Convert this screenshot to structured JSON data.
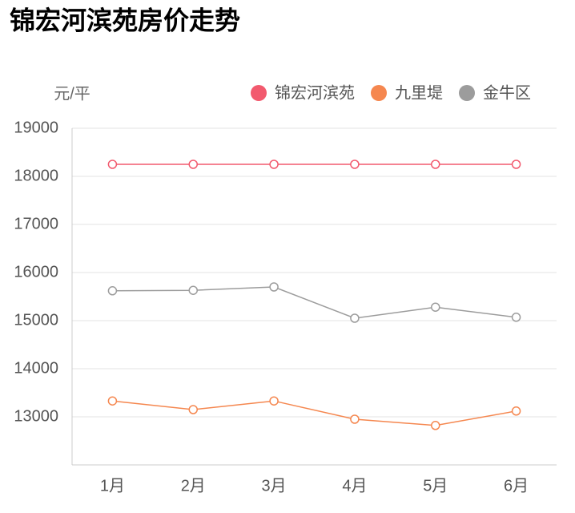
{
  "chart_data": {
    "type": "line",
    "title": "锦宏河滨苑房价走势",
    "y_label": "元/平",
    "categories": [
      "1月",
      "2月",
      "3月",
      "4月",
      "5月",
      "6月"
    ],
    "series": [
      {
        "name": "锦宏河滨苑",
        "color": "#f25a6e",
        "values": [
          18250,
          18250,
          18250,
          18250,
          18250,
          18250
        ]
      },
      {
        "name": "九里堤",
        "color": "#f5874f",
        "values": [
          13330,
          13150,
          13330,
          12950,
          12820,
          13120
        ]
      },
      {
        "name": "金牛区",
        "color": "#9c9c9c",
        "values": [
          15620,
          15630,
          15700,
          15050,
          15280,
          15070
        ]
      }
    ],
    "ylim": [
      12000,
      19000
    ],
    "yticks": [
      13000,
      14000,
      15000,
      16000,
      17000,
      18000,
      19000
    ],
    "grid": true
  }
}
